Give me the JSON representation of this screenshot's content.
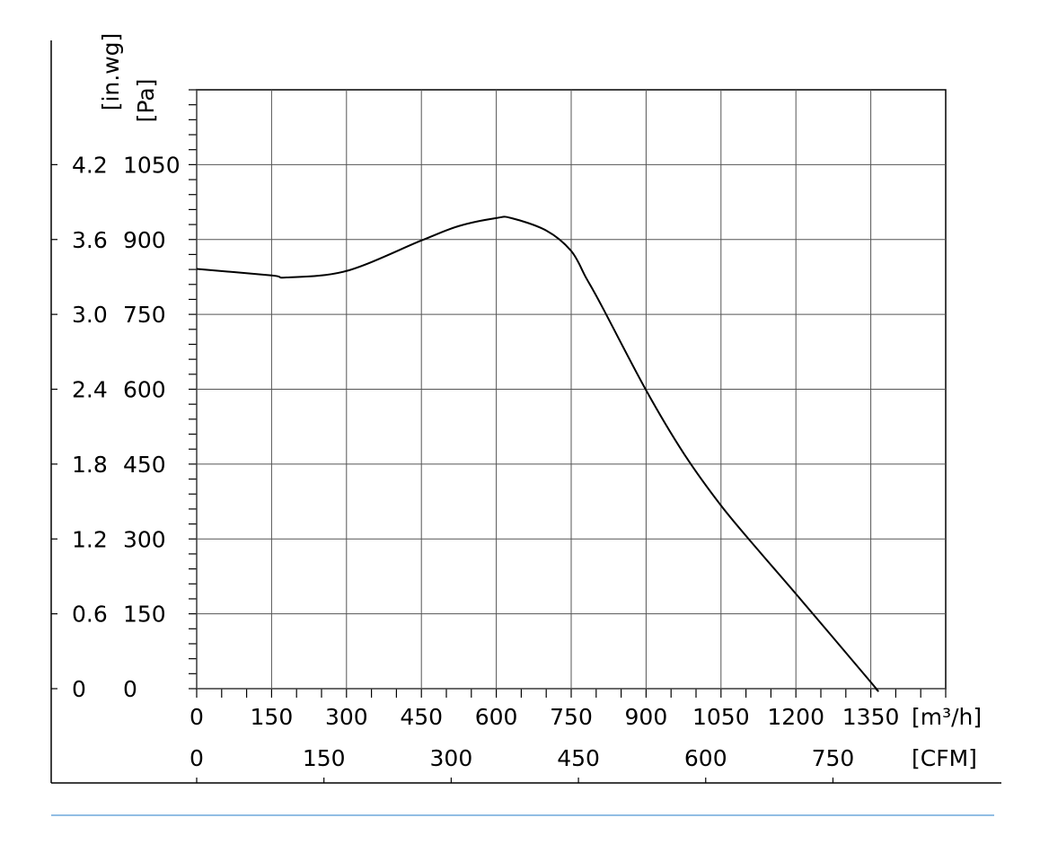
{
  "chart_data": {
    "type": "line",
    "x": [
      0,
      150,
      180,
      300,
      450,
      525,
      600,
      630,
      700,
      750,
      780,
      810,
      900,
      975,
      1050,
      1125,
      1200,
      1350,
      1360
    ],
    "values": [
      841,
      828,
      824,
      837,
      898,
      927,
      943,
      943,
      918,
      877,
      823,
      769,
      598,
      472,
      367,
      277,
      190,
      13,
      0
    ],
    "color": "#000000",
    "xlim": [
      0,
      1500
    ],
    "xticks": [
      0,
      150,
      300,
      450,
      600,
      750,
      900,
      1050,
      1200,
      1350
    ],
    "ylim": [
      0,
      1200
    ],
    "yticks": [
      0,
      150,
      300,
      450,
      600,
      750,
      900,
      1050
    ],
    "x2lim": [
      0,
      882.9
    ],
    "x2ticks": [
      0,
      150,
      300,
      450,
      600,
      750
    ],
    "y2lim": [
      0,
      4.8
    ],
    "y2ticks": [
      0,
      0.6,
      1.2,
      1.8,
      2.4,
      {
        "value": 3.0,
        "label": "3.0"
      },
      3.6,
      4.2
    ],
    "x_label": "[m³/h]",
    "x2_label": "[CFM]",
    "y_label": "[Pa]",
    "y2_label": "[in.wg]",
    "grid": true
  }
}
